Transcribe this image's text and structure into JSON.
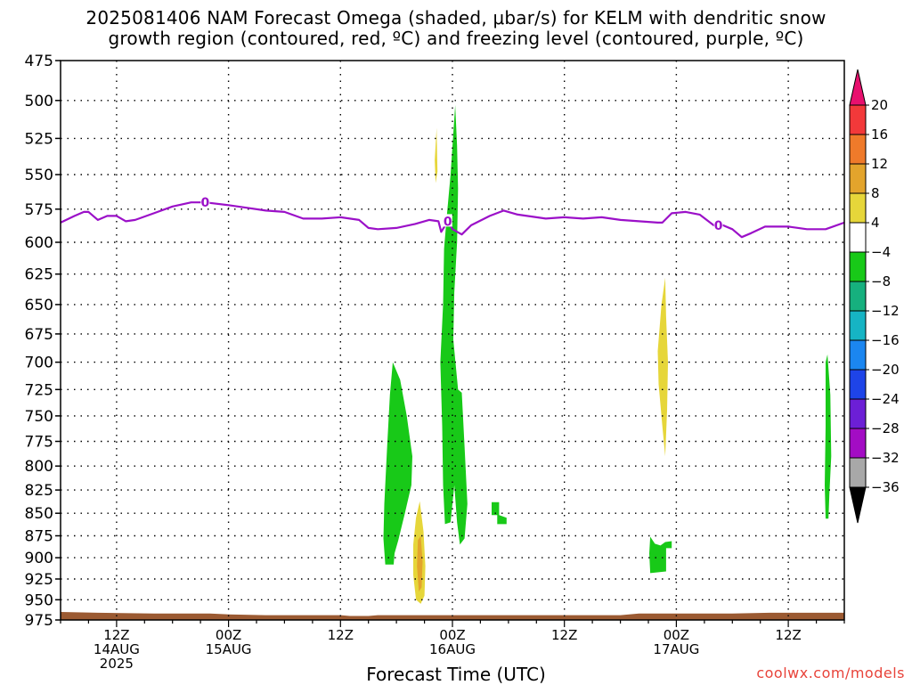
{
  "title": {
    "line1": "2025081406 NAM Forecast Omega (shaded, μbar/s) for KELM with dendritic snow",
    "line2": "growth region (contoured, red, ºC) and freezing level (contoured, purple, ºC)"
  },
  "credit": "coolwx.com/models",
  "chart_data": {
    "type": "heatmap",
    "xlabel": "Forecast Time (UTC)",
    "ylabel": "",
    "x_unit": "hours from 2025081406",
    "xlim": [
      0,
      84
    ],
    "y_ticks": [
      475,
      500,
      525,
      550,
      575,
      600,
      625,
      650,
      675,
      700,
      725,
      750,
      775,
      800,
      825,
      850,
      875,
      900,
      925,
      950,
      975
    ],
    "y_scale": "pressure (hPa), log",
    "ylim": [
      975,
      475
    ],
    "x_ticks": [
      {
        "hour": 6,
        "lines": [
          "12Z",
          "14AUG",
          "2025"
        ]
      },
      {
        "hour": 18,
        "lines": [
          "00Z",
          "15AUG"
        ]
      },
      {
        "hour": 30,
        "lines": [
          "12Z"
        ]
      },
      {
        "hour": 42,
        "lines": [
          "00Z",
          "16AUG"
        ]
      },
      {
        "hour": 54,
        "lines": [
          "12Z"
        ]
      },
      {
        "hour": 66,
        "lines": [
          "00Z",
          "17AUG"
        ]
      },
      {
        "hour": 78,
        "lines": [
          "12Z"
        ]
      }
    ],
    "colorbar": {
      "labels": [
        "20",
        "16",
        "12",
        "8",
        "4",
        "−4",
        "−8",
        "−12",
        "−16",
        "−20",
        "−24",
        "−28",
        "−32",
        "−36"
      ],
      "colors": [
        "#e8106e",
        "#f2393a",
        "#ef7a2a",
        "#e3a42c",
        "#e6d63a",
        "#ffffff",
        "#18c918",
        "#16b07e",
        "#16b4c4",
        "#1b86f0",
        "#1e44e8",
        "#6c1fd6",
        "#a30cc4",
        "#a8a8a8",
        "#000000"
      ]
    },
    "freezing_level": {
      "color": "#9b10c8",
      "label": "0",
      "label_at_hours": [
        15.5,
        41.5,
        70.5
      ],
      "points": [
        [
          0,
          585
        ],
        [
          1.5,
          580
        ],
        [
          2.5,
          577
        ],
        [
          3,
          577
        ],
        [
          4,
          583
        ],
        [
          5,
          580
        ],
        [
          6,
          580
        ],
        [
          7,
          584
        ],
        [
          8,
          583
        ],
        [
          10,
          578
        ],
        [
          12,
          573
        ],
        [
          14,
          570
        ],
        [
          15.5,
          570
        ],
        [
          18,
          572
        ],
        [
          20,
          574
        ],
        [
          22,
          576
        ],
        [
          24,
          577
        ],
        [
          26,
          582
        ],
        [
          28,
          582
        ],
        [
          30,
          581
        ],
        [
          32,
          583
        ],
        [
          33,
          589
        ],
        [
          34,
          590
        ],
        [
          36,
          589
        ],
        [
          38,
          586
        ],
        [
          39.5,
          583
        ],
        [
          40.5,
          584
        ],
        [
          40.8,
          592
        ],
        [
          41.5,
          584
        ],
        [
          42,
          590
        ],
        [
          43,
          594
        ],
        [
          44,
          587
        ],
        [
          46,
          580
        ],
        [
          47.5,
          576
        ],
        [
          49,
          579
        ],
        [
          52,
          582
        ],
        [
          54,
          581
        ],
        [
          56,
          582
        ],
        [
          58,
          581
        ],
        [
          60,
          583
        ],
        [
          62,
          584
        ],
        [
          64,
          585
        ],
        [
          64.5,
          585
        ],
        [
          65.5,
          578
        ],
        [
          67,
          577
        ],
        [
          68.5,
          579
        ],
        [
          70,
          587
        ],
        [
          71,
          587
        ],
        [
          72,
          590
        ],
        [
          73,
          596
        ],
        [
          74,
          593
        ],
        [
          75.5,
          588
        ],
        [
          78,
          588
        ],
        [
          80,
          590
        ],
        [
          82,
          590
        ],
        [
          84,
          585
        ]
      ]
    },
    "shaded_regions": [
      {
        "value_range": "-8 to -4",
        "color": "#18c918",
        "points": [
          [
            35.6,
            700
          ],
          [
            36.4,
            716
          ],
          [
            37.1,
            750
          ],
          [
            37.7,
            790
          ],
          [
            37.6,
            820
          ],
          [
            36.9,
            850
          ],
          [
            36.2,
            880
          ],
          [
            35.8,
            895
          ],
          [
            35.7,
            908
          ],
          [
            34.8,
            908
          ],
          [
            34.6,
            878
          ],
          [
            34.7,
            840
          ],
          [
            35.0,
            780
          ],
          [
            35.3,
            730
          ]
        ]
      },
      {
        "value_range": "-8 to -4",
        "color": "#18c918",
        "points": [
          [
            42.3,
            503
          ],
          [
            42.5,
            530
          ],
          [
            42.6,
            560
          ],
          [
            42.5,
            600
          ],
          [
            42.2,
            640
          ],
          [
            42.1,
            680
          ],
          [
            42.6,
            725
          ],
          [
            43.0,
            728
          ],
          [
            43.3,
            780
          ],
          [
            43.6,
            840
          ],
          [
            43.3,
            878
          ],
          [
            42.8,
            885
          ],
          [
            42.5,
            860
          ],
          [
            42.2,
            820
          ],
          [
            41.8,
            860
          ],
          [
            41.2,
            862
          ],
          [
            41.0,
            820
          ],
          [
            40.9,
            760
          ],
          [
            40.7,
            700
          ],
          [
            41.0,
            650
          ],
          [
            41.1,
            605
          ],
          [
            41.4,
            580
          ],
          [
            41.8,
            550
          ]
        ]
      },
      {
        "value_range": "-8 to -4",
        "color": "#18c918",
        "points": [
          [
            46.2,
            838
          ],
          [
            47.0,
            838
          ],
          [
            47.0,
            852
          ],
          [
            47.8,
            855
          ],
          [
            47.8,
            862
          ],
          [
            46.8,
            862
          ],
          [
            46.8,
            852
          ],
          [
            46.2,
            852
          ]
        ]
      },
      {
        "value_range": "-8 to -4",
        "color": "#18c918",
        "points": [
          [
            63.2,
            876
          ],
          [
            63.7,
            884
          ],
          [
            64.3,
            886
          ],
          [
            64.8,
            882
          ],
          [
            65.5,
            881
          ],
          [
            65.5,
            889
          ],
          [
            64.9,
            889
          ],
          [
            64.9,
            916
          ],
          [
            63.2,
            918
          ],
          [
            63.1,
            895
          ]
        ]
      },
      {
        "value_range": "-8 to -4",
        "color": "#18c918",
        "points": [
          [
            82.2,
            693
          ],
          [
            82.5,
            730
          ],
          [
            82.6,
            790
          ],
          [
            82.4,
            830
          ],
          [
            82.3,
            856
          ],
          [
            82.0,
            856
          ],
          [
            81.9,
            820
          ],
          [
            82.0,
            760
          ],
          [
            82.0,
            700
          ]
        ]
      },
      {
        "value_range": "4 to 8",
        "color": "#e6d63a",
        "points": [
          [
            40.3,
            518
          ],
          [
            40.4,
            548
          ],
          [
            40.2,
            556
          ],
          [
            40.1,
            540
          ]
        ]
      },
      {
        "value_range": "4 to 8",
        "color": "#e6d63a",
        "points": [
          [
            64.8,
            628
          ],
          [
            64.9,
            660
          ],
          [
            65.1,
            700
          ],
          [
            65.0,
            745
          ],
          [
            64.8,
            790
          ],
          [
            64.5,
            760
          ],
          [
            64.1,
            720
          ],
          [
            64.0,
            690
          ],
          [
            64.4,
            650
          ]
        ]
      },
      {
        "value_range": "4 to 8",
        "color": "#e6d63a",
        "points": [
          [
            38.5,
            837
          ],
          [
            38.9,
            870
          ],
          [
            39.1,
            910
          ],
          [
            39.0,
            945
          ],
          [
            38.6,
            955
          ],
          [
            38.1,
            950
          ],
          [
            37.8,
            920
          ],
          [
            37.8,
            885
          ],
          [
            38.1,
            855
          ]
        ]
      },
      {
        "value_range": "8 to 12",
        "color": "#e3a42c",
        "points": [
          [
            38.6,
            875
          ],
          [
            38.8,
            905
          ],
          [
            38.7,
            935
          ],
          [
            38.4,
            940
          ],
          [
            38.2,
            910
          ],
          [
            38.3,
            880
          ]
        ]
      }
    ],
    "terrain": {
      "color": "#9b5a32",
      "points": [
        [
          0,
          965
        ],
        [
          4,
          966
        ],
        [
          10,
          967
        ],
        [
          16,
          967
        ],
        [
          18,
          968
        ],
        [
          22,
          969
        ],
        [
          30,
          969
        ],
        [
          31,
          970
        ],
        [
          33,
          970
        ],
        [
          34,
          969
        ],
        [
          45,
          969
        ],
        [
          60,
          969
        ],
        [
          62,
          967
        ],
        [
          72,
          967
        ],
        [
          76,
          966
        ],
        [
          84,
          966
        ]
      ]
    }
  }
}
